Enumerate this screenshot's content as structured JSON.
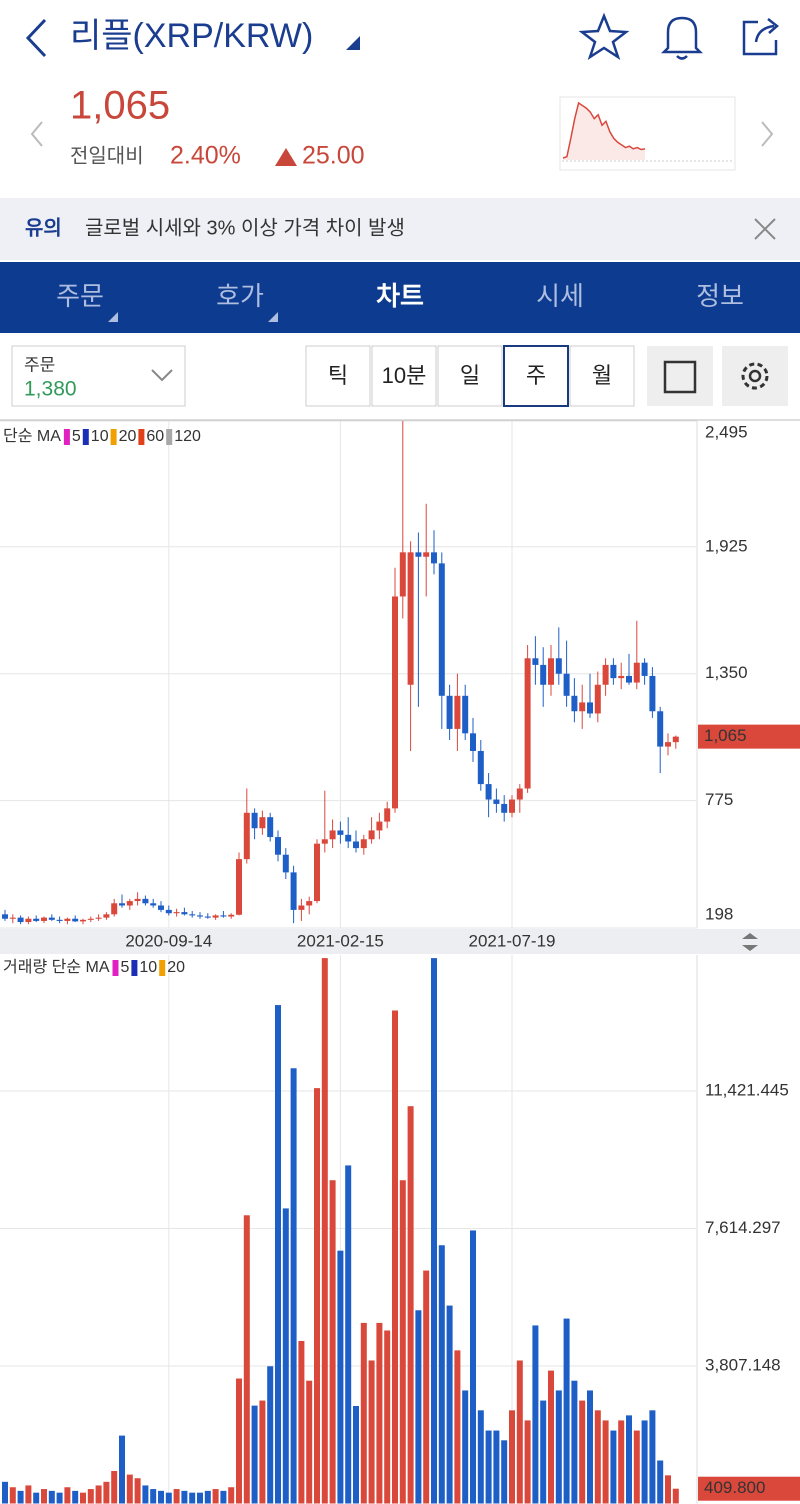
{
  "header": {
    "title": "리플(XRP/KRW)"
  },
  "quote": {
    "price": "1,065",
    "change_label": "전일대비",
    "change_pct": "2.40%",
    "change": "25.00",
    "sparkline": {
      "color": "#d9483b",
      "values": [
        1000,
        1010,
        1150,
        1300,
        1420,
        1400,
        1380,
        1350,
        1300,
        1330,
        1250,
        1280,
        1200,
        1150,
        1120,
        1100,
        1080,
        1090,
        1070,
        1080,
        1065,
        1070
      ]
    }
  },
  "notice": {
    "tag": "유의",
    "text": "글로벌 시세와 3% 이상 가격 차이 발생"
  },
  "tabs": [
    {
      "label": "주문"
    },
    {
      "label": "호가"
    },
    {
      "label": "차트",
      "active": true
    },
    {
      "label": "시세"
    },
    {
      "label": "정보"
    }
  ],
  "order_box": {
    "label": "주문",
    "value": "1,380"
  },
  "periods": [
    {
      "label": "틱"
    },
    {
      "label": "10분"
    },
    {
      "label": "일"
    },
    {
      "label": "주",
      "selected": true
    },
    {
      "label": "월"
    }
  ],
  "chart_data": [
    {
      "type": "candlestick",
      "legend_title": "단순 MA",
      "indicators": [
        {
          "name": "5",
          "color": "#e020c0"
        },
        {
          "name": "10",
          "color": "#1a2fb5"
        },
        {
          "name": "20",
          "color": "#f0a000"
        },
        {
          "name": "60",
          "color": "#e0401a"
        },
        {
          "name": "120",
          "color": "#a8a8a8"
        }
      ],
      "up_color": "#d9483b",
      "down_color": "#1e5fc7",
      "categories": [
        null,
        null,
        null,
        null,
        null,
        null,
        null,
        null,
        null,
        null,
        null,
        null,
        null,
        null,
        null,
        null,
        null,
        null,
        null,
        null,
        null,
        "2020-09-14",
        null,
        null,
        null,
        null,
        null,
        null,
        null,
        null,
        null,
        null,
        null,
        null,
        null,
        null,
        null,
        null,
        null,
        null,
        null,
        null,
        null,
        "2021-02-15",
        null,
        null,
        null,
        null,
        null,
        null,
        null,
        null,
        null,
        null,
        null,
        null,
        null,
        null,
        null,
        null,
        null,
        null,
        null,
        null,
        null,
        "2021-07-19",
        null,
        null,
        null,
        null,
        null,
        null,
        null,
        null,
        null,
        null,
        null,
        null,
        null,
        null,
        null,
        null,
        null,
        null,
        null,
        null,
        null
      ],
      "open": [
        260,
        240,
        245,
        225,
        240,
        230,
        245,
        235,
        230,
        240,
        228,
        235,
        240,
        245,
        260,
        310,
        300,
        320,
        330,
        310,
        300,
        280,
        265,
        270,
        260,
        255,
        250,
        245,
        255,
        250,
        258,
        510,
        720,
        650,
        700,
        610,
        530,
        450,
        280,
        300,
        320,
        580,
        600,
        640,
        620,
        590,
        560,
        600,
        640,
        680,
        740,
        1700,
        1300,
        1900,
        1880,
        1900,
        1850,
        1250,
        1100,
        1250,
        1080,
        1000,
        850,
        780,
        760,
        720,
        780,
        830,
        1420,
        1390,
        1300,
        1420,
        1350,
        1250,
        1180,
        1220,
        1170,
        1300,
        1390,
        1330,
        1340,
        1310,
        1400,
        1340,
        1180,
        1020,
        1040
      ],
      "high": [
        280,
        260,
        255,
        250,
        255,
        250,
        260,
        250,
        245,
        255,
        240,
        250,
        260,
        270,
        330,
        350,
        330,
        360,
        345,
        330,
        320,
        300,
        285,
        290,
        275,
        270,
        265,
        260,
        275,
        265,
        540,
        830,
        740,
        730,
        720,
        640,
        560,
        480,
        330,
        340,
        600,
        820,
        690,
        680,
        700,
        640,
        620,
        700,
        720,
        770,
        1830,
        2495,
        1950,
        1990,
        2120,
        2000,
        1900,
        1300,
        1350,
        1300,
        1150,
        1050,
        900,
        830,
        800,
        800,
        850,
        1480,
        1520,
        1470,
        1480,
        1560,
        1500,
        1330,
        1300,
        1350,
        1360,
        1420,
        1420,
        1400,
        1440,
        1590,
        1420,
        1380,
        1200,
        1080,
        1070
      ],
      "low": [
        230,
        220,
        215,
        215,
        225,
        220,
        230,
        220,
        215,
        225,
        215,
        225,
        230,
        235,
        250,
        290,
        280,
        300,
        300,
        290,
        270,
        255,
        250,
        255,
        245,
        240,
        240,
        235,
        245,
        240,
        255,
        490,
        600,
        620,
        590,
        500,
        420,
        220,
        230,
        260,
        310,
        540,
        560,
        580,
        560,
        540,
        530,
        580,
        600,
        650,
        720,
        1600,
        1000,
        1200,
        1700,
        1800,
        1100,
        1050,
        1000,
        1050,
        950,
        820,
        700,
        720,
        680,
        700,
        720,
        810,
        1300,
        1200,
        1250,
        1300,
        1200,
        1130,
        1100,
        1150,
        1130,
        1250,
        1300,
        1280,
        1300,
        1280,
        1300,
        1150,
        900,
        980,
        1010
      ],
      "close": [
        240,
        245,
        225,
        240,
        230,
        245,
        235,
        230,
        240,
        228,
        235,
        240,
        245,
        260,
        310,
        300,
        320,
        330,
        310,
        300,
        280,
        265,
        270,
        260,
        255,
        250,
        245,
        255,
        250,
        258,
        510,
        720,
        650,
        700,
        610,
        530,
        450,
        280,
        300,
        320,
        580,
        600,
        640,
        620,
        590,
        560,
        600,
        640,
        680,
        740,
        1700,
        1900,
        1900,
        1880,
        1900,
        1850,
        1250,
        1100,
        1250,
        1080,
        1000,
        850,
        780,
        760,
        720,
        780,
        830,
        1420,
        1390,
        1300,
        1420,
        1350,
        1250,
        1180,
        1220,
        1170,
        1300,
        1390,
        1330,
        1340,
        1310,
        1400,
        1340,
        1180,
        1020,
        1040,
        1065
      ],
      "ylim": [
        198,
        2495
      ],
      "yticks": [
        {
          "value": 198,
          "label": "198"
        },
        {
          "value": 775,
          "label": "775"
        },
        {
          "value": 1350,
          "label": "1,350"
        },
        {
          "value": 1925,
          "label": "1,925"
        },
        {
          "value": 2495,
          "label": "2,495"
        }
      ],
      "marker": {
        "value": 1065,
        "label": "1,065"
      },
      "grid": true
    },
    {
      "type": "bar",
      "legend_title": "거래량 단순 MA",
      "indicators": [
        {
          "name": "5",
          "color": "#e020c0"
        },
        {
          "name": "10",
          "color": "#1a2fb5"
        },
        {
          "name": "20",
          "color": "#f0a000"
        }
      ],
      "values": [
        600,
        450,
        350,
        500,
        300,
        400,
        350,
        300,
        450,
        350,
        300,
        400,
        500,
        600,
        900,
        1880,
        800,
        700,
        500,
        400,
        350,
        300,
        400,
        350,
        300,
        300,
        350,
        400,
        350,
        450,
        3460,
        7980,
        2710,
        2850,
        3800,
        13800,
        8170,
        12050,
        4500,
        3400,
        11500,
        15100,
        8950,
        7000,
        9360,
        2700,
        5000,
        3960,
        5000,
        4790,
        13650,
        8950,
        11000,
        5350,
        6450,
        15100,
        7150,
        5480,
        4240,
        3130,
        7560,
        2580,
        2020,
        2020,
        1750,
        2580,
        3960,
        2300,
        4930,
        2850,
        3680,
        3130,
        5120,
        3400,
        2850,
        3130,
        2580,
        2300,
        2020,
        2300,
        2440,
        2020,
        2300,
        2580,
        1190,
        780,
        409.8
      ],
      "ylim": [
        0,
        15186
      ],
      "yticks": [
        {
          "value": 3807.148,
          "label": "3,807.148"
        },
        {
          "value": 7614.297,
          "label": "7,614.297"
        },
        {
          "value": 11421.445,
          "label": "11,421.445"
        }
      ],
      "marker": {
        "value": 409.8,
        "label": "409.800"
      },
      "grid": true
    }
  ]
}
